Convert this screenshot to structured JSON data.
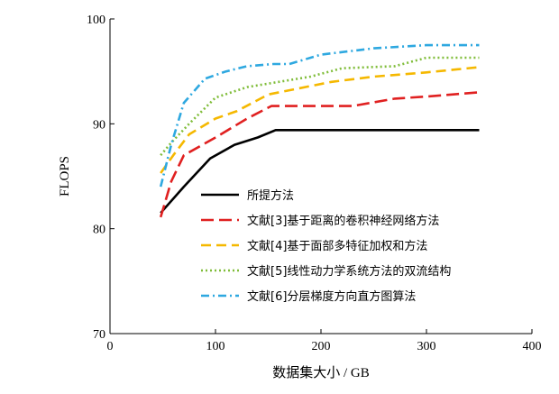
{
  "chart_data": {
    "type": "line",
    "title": "",
    "xlabel": "数据集大小 / GB",
    "ylabel": "FLOPS",
    "xlim": [
      0,
      400
    ],
    "ylim": [
      70,
      100
    ],
    "xticks": [
      0,
      100,
      200,
      300,
      400
    ],
    "yticks": [
      70,
      80,
      90,
      100
    ],
    "xtick_labels": [
      "0",
      "100",
      "200",
      "300",
      "400"
    ],
    "ytick_labels": [
      "70",
      "80",
      "90",
      "100"
    ],
    "grid": false,
    "legend_position": "center-right",
    "series": [
      {
        "name": "所提方法",
        "color": "#000000",
        "dash": "solid",
        "x": [
          48,
          70,
          95,
          118,
          140,
          157,
          180,
          200,
          250,
          300,
          350
        ],
        "y": [
          81.5,
          84.0,
          86.7,
          88.0,
          88.7,
          89.4,
          89.4,
          89.4,
          89.4,
          89.4,
          89.4
        ]
      },
      {
        "name": "文献[3]基于距离的卷积神经网络方法",
        "color": "#e02020",
        "dash": "long-dash",
        "x": [
          48,
          58,
          70,
          100,
          130,
          153,
          180,
          230,
          270,
          300,
          350
        ],
        "y": [
          81.1,
          84.5,
          87.0,
          88.7,
          90.5,
          91.7,
          91.7,
          91.7,
          92.4,
          92.6,
          93.0
        ]
      },
      {
        "name": "文献[4]基于面部多特征加权和方法",
        "color": "#f5b800",
        "dash": "dash",
        "x": [
          48,
          60,
          75,
          100,
          120,
          150,
          180,
          210,
          250,
          300,
          350
        ],
        "y": [
          85.3,
          87.0,
          89.0,
          90.5,
          91.2,
          92.8,
          93.4,
          94.0,
          94.5,
          94.9,
          95.4
        ]
      },
      {
        "name": "文献[5]线性动力学系统方法的双流结构",
        "color": "#80bd3a",
        "dash": "dotted",
        "x": [
          48,
          58,
          75,
          100,
          130,
          160,
          190,
          220,
          270,
          300,
          350
        ],
        "y": [
          87.0,
          88.2,
          90.0,
          92.5,
          93.5,
          94.0,
          94.5,
          95.3,
          95.5,
          96.3,
          96.3
        ]
      },
      {
        "name": "文献[6]分层梯度方向直方图算法",
        "color": "#2ea8e0",
        "dash": "dash-dot",
        "x": [
          48,
          58,
          70,
          90,
          110,
          130,
          155,
          170,
          200,
          250,
          300,
          350
        ],
        "y": [
          84.0,
          88.0,
          92.0,
          94.3,
          95.0,
          95.5,
          95.7,
          95.7,
          96.6,
          97.2,
          97.5,
          97.5
        ]
      }
    ]
  }
}
